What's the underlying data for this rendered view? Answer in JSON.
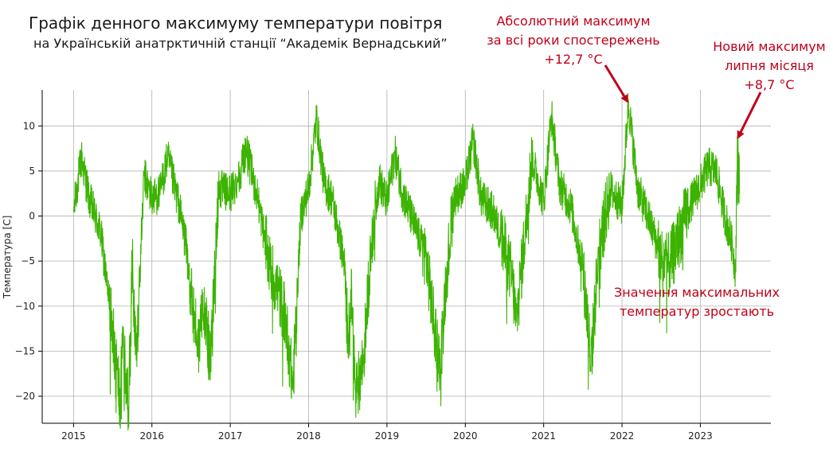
{
  "chart_data": {
    "type": "line",
    "title": "Графік денного максимуму температури повітря",
    "subtitle": "на Українській анатрктичній станції “Академік Вернадський”",
    "xlabel": "",
    "ylabel": "Температура [C]",
    "xlim": [
      2014.6,
      2023.9
    ],
    "ylim": [
      -23,
      14
    ],
    "xticks": [
      2015,
      2016,
      2017,
      2018,
      2019,
      2020,
      2021,
      2022,
      2023
    ],
    "xtick_labels": [
      "2015",
      "2016",
      "2017",
      "2018",
      "2019",
      "2020",
      "2021",
      "2022",
      "2023"
    ],
    "yticks": [
      -20,
      -15,
      -10,
      -5,
      0,
      5,
      10
    ],
    "ytick_labels": [
      "−20",
      "−15",
      "−10",
      "−5",
      "0",
      "5",
      "10"
    ],
    "grid": true,
    "series": [
      {
        "color": "#3cb300",
        "x_start": 2015.0,
        "x_end": 2023.5,
        "weekly_envelope": "approximate: summer near +2..+5 °C, winter dips to −15..−22 °C",
        "x": [
          2015.0,
          2015.1,
          2015.2,
          2015.35,
          2015.45,
          2015.55,
          2015.6,
          2015.62,
          2015.7,
          2015.75,
          2015.8,
          2015.9,
          2016.0,
          2016.1,
          2016.2,
          2016.35,
          2016.45,
          2016.5,
          2016.6,
          2016.65,
          2016.75,
          2016.85,
          2017.0,
          2017.1,
          2017.2,
          2017.35,
          2017.5,
          2017.6,
          2017.7,
          2017.8,
          2017.9,
          2018.0,
          2018.1,
          2018.2,
          2018.3,
          2018.45,
          2018.5,
          2018.55,
          2018.6,
          2018.7,
          2018.8,
          2018.9,
          2019.0,
          2019.1,
          2019.2,
          2019.35,
          2019.5,
          2019.6,
          2019.68,
          2019.75,
          2019.85,
          2020.0,
          2020.1,
          2020.2,
          2020.35,
          2020.5,
          2020.6,
          2020.65,
          2020.75,
          2020.85,
          2021.0,
          2021.1,
          2021.2,
          2021.35,
          2021.5,
          2021.58,
          2021.6,
          2021.7,
          2021.85,
          2022.0,
          2022.08,
          2022.2,
          2022.35,
          2022.5,
          2022.6,
          2022.7,
          2022.85,
          2023.0,
          2023.1,
          2023.2,
          2023.3,
          2023.4,
          2023.45,
          2023.47,
          2023.5
        ],
        "y": [
          0.5,
          6.5,
          2.0,
          -2.0,
          -9.5,
          -16.5,
          -21.5,
          -13.0,
          -21.2,
          -5.0,
          -16.0,
          4.5,
          2.0,
          2.5,
          6.5,
          1.0,
          -4.0,
          -9.0,
          -14.5,
          -8.5,
          -16.5,
          3.0,
          2.5,
          4.0,
          7.5,
          2.0,
          -5.5,
          -8.0,
          -11.0,
          -19.0,
          0.0,
          3.0,
          10.8,
          3.5,
          2.0,
          -5.0,
          -13.0,
          -9.0,
          -20.0,
          -16.0,
          -3.0,
          4.0,
          1.5,
          7.0,
          2.5,
          -1.0,
          -4.5,
          -12.0,
          -16.8,
          -7.5,
          2.0,
          3.5,
          8.5,
          2.0,
          0.5,
          -3.5,
          -7.0,
          -11.8,
          -3.0,
          6.5,
          1.5,
          11.3,
          3.5,
          1.0,
          -6.0,
          -13.0,
          -17.0,
          -4.0,
          3.0,
          1.0,
          12.7,
          3.0,
          -0.5,
          -4.5,
          -5.5,
          -3.0,
          1.0,
          3.5,
          5.5,
          5.0,
          0.5,
          -3.0,
          -6.2,
          8.7,
          2.5
        ]
      }
    ],
    "annotations": [
      {
        "lines": [
          "Абсолютний максимум",
          "за всі роки спостережень",
          "+12,7 °C"
        ],
        "target": [
          2022.07,
          12.7
        ],
        "color": "#c0001a"
      },
      {
        "lines": [
          "Новий максимум",
          "липня місяця",
          "+8,7 °C"
        ],
        "target": [
          2023.48,
          8.7
        ],
        "color": "#c0001a"
      },
      {
        "lines": [
          "Значення максимальних",
          "температур зростають"
        ],
        "color": "#c0001a"
      }
    ]
  }
}
